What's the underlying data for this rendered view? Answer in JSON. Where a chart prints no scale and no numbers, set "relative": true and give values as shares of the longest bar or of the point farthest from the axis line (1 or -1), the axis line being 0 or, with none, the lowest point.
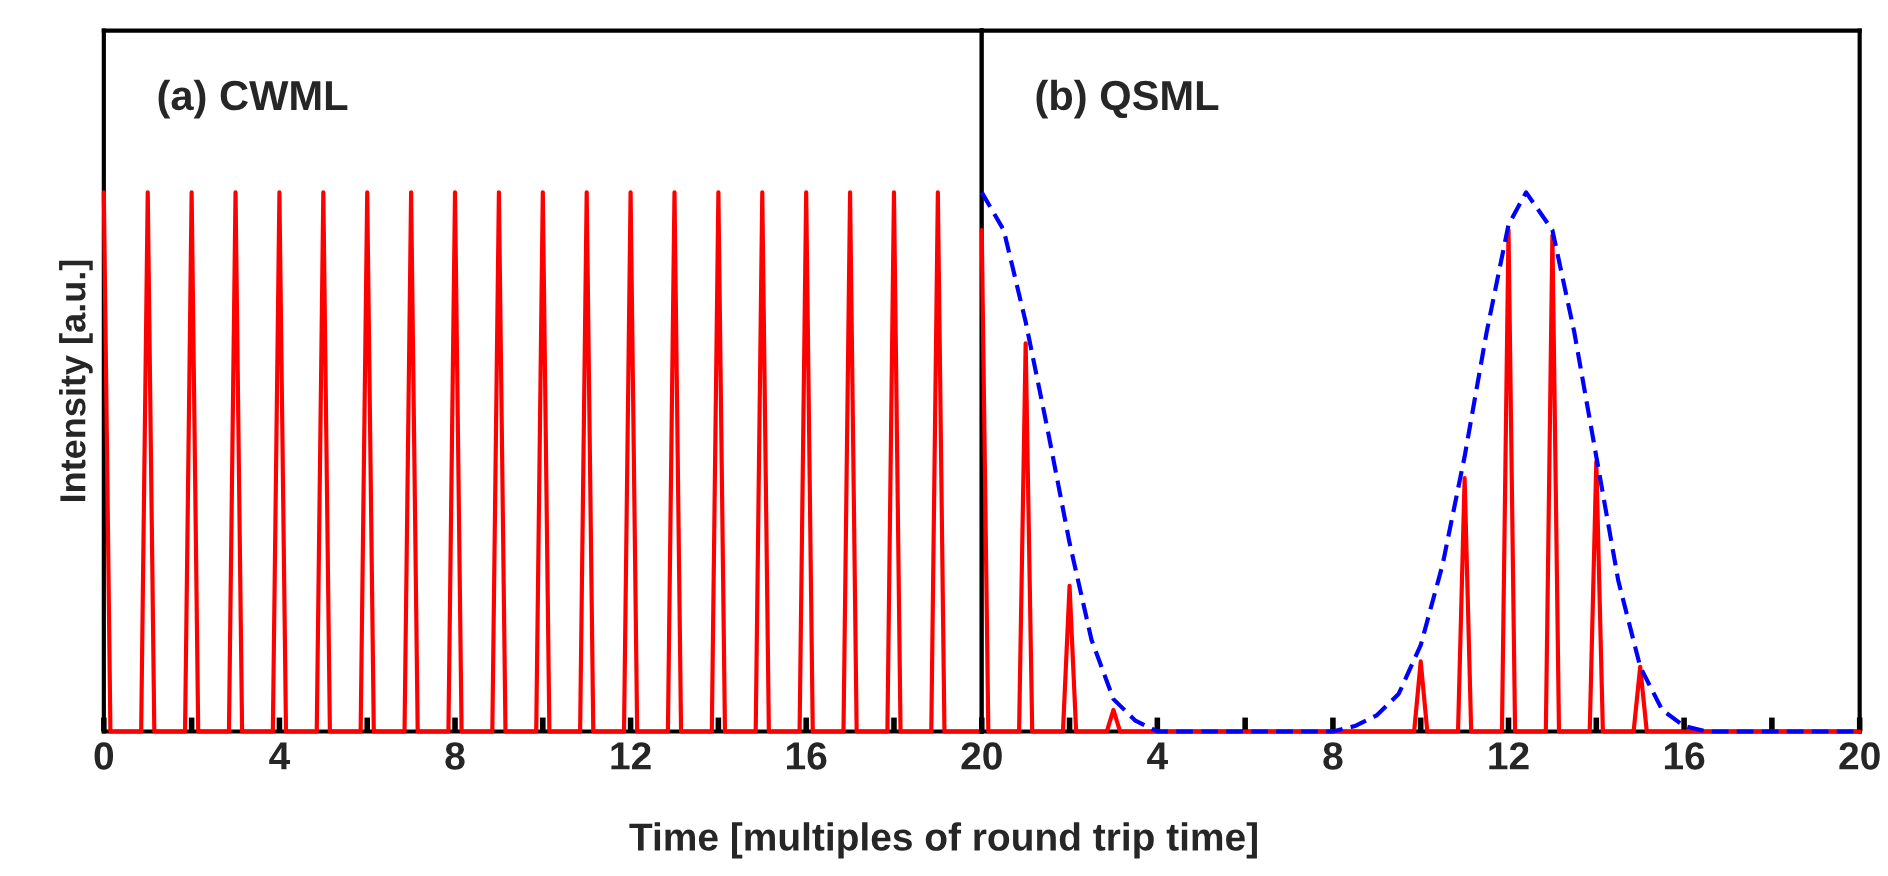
{
  "chart_data": [
    {
      "type": "line",
      "title": "(a) CWML",
      "ylabel": "Intensity [a.u.]",
      "xlabel": "Time [multiples of round trip time]",
      "relative": true,
      "xlim": [
        0,
        20
      ],
      "xticks": [
        0,
        {
          "value": 2,
          "label": null
        },
        4,
        {
          "value": 6,
          "label": null
        },
        8,
        {
          "value": 10,
          "label": null
        },
        12,
        {
          "value": 14,
          "label": null
        },
        16,
        {
          "value": 18,
          "label": null
        },
        20
      ],
      "tick_labels": "x",
      "grid": false,
      "legend": false,
      "series": [
        {
          "color": "#ff0000",
          "line_style": "solid",
          "x": [
            0,
            0.15,
            0.85,
            1,
            1.15,
            1.85,
            2,
            2.15,
            2.85,
            3,
            3.15,
            3.85,
            4,
            4.15,
            4.85,
            5,
            5.15,
            5.85,
            6,
            6.15,
            6.85,
            7,
            7.15,
            7.85,
            8,
            8.15,
            8.85,
            9,
            9.15,
            9.85,
            10,
            10.15,
            10.85,
            11,
            11.15,
            11.85,
            12,
            12.15,
            12.85,
            13,
            13.15,
            13.85,
            14,
            14.15,
            14.85,
            15,
            15.15,
            15.85,
            16,
            16.15,
            16.85,
            17,
            17.15,
            17.85,
            18,
            18.15,
            18.85,
            19,
            19.15,
            20
          ],
          "values": [
            1,
            0,
            0,
            1,
            0,
            0,
            1,
            0,
            0,
            1,
            0,
            0,
            1,
            0,
            0,
            1,
            0,
            0,
            1,
            0,
            0,
            1,
            0,
            0,
            1,
            0,
            0,
            1,
            0,
            0,
            1,
            0,
            0,
            1,
            0,
            0,
            1,
            0,
            0,
            1,
            0,
            0,
            1,
            0,
            0,
            1,
            0,
            0,
            1,
            0,
            0,
            1,
            0,
            0,
            1,
            0,
            0,
            1,
            0,
            0
          ]
        }
      ]
    },
    {
      "type": "line",
      "title": "(b) QSML",
      "relative": true,
      "xlim": [
        0,
        20
      ],
      "xticks": [
        {
          "value": 0,
          "label": null
        },
        {
          "value": 2,
          "label": null
        },
        4,
        {
          "value": 6,
          "label": null
        },
        8,
        {
          "value": 10,
          "label": null
        },
        12,
        {
          "value": 14,
          "label": null
        },
        16,
        {
          "value": 18,
          "label": null
        },
        20
      ],
      "tick_labels": "x",
      "grid": false,
      "legend": false,
      "series": [
        {
          "color": "#ff0000",
          "line_style": "solid",
          "x": [
            0,
            0.15,
            0.85,
            1,
            1.15,
            1.85,
            2,
            2.15,
            2.85,
            3,
            3.15,
            9.85,
            10,
            10.15,
            10.85,
            11,
            11.15,
            11.85,
            12,
            12.15,
            12.85,
            13,
            13.15,
            13.85,
            14,
            14.15,
            14.85,
            15,
            15.15,
            20
          ],
          "values": [
            0.93,
            0,
            0,
            0.72,
            0,
            0,
            0.27,
            0,
            0,
            0.04,
            0,
            0,
            0.13,
            0,
            0,
            0.47,
            0,
            0,
            0.93,
            0,
            0,
            0.92,
            0,
            0,
            0.5,
            0,
            0,
            0.12,
            0,
            0
          ]
        },
        {
          "color": "#0000ff",
          "line_style": "dashed",
          "x": [
            0,
            0.5,
            1,
            1.5,
            2,
            2.5,
            3,
            3.5,
            4,
            8,
            8.5,
            9,
            9.5,
            10,
            10.5,
            11,
            11.5,
            12,
            12.4,
            13,
            13.5,
            14,
            14.5,
            15,
            15.5,
            16,
            16.5,
            20
          ],
          "values": [
            1,
            0.93,
            0.76,
            0.56,
            0.35,
            0.17,
            0.06,
            0.02,
            0,
            0,
            0.01,
            0.03,
            0.07,
            0.16,
            0.31,
            0.51,
            0.74,
            0.94,
            1,
            0.93,
            0.74,
            0.51,
            0.28,
            0.12,
            0.04,
            0.01,
            0,
            0
          ]
        }
      ]
    }
  ]
}
